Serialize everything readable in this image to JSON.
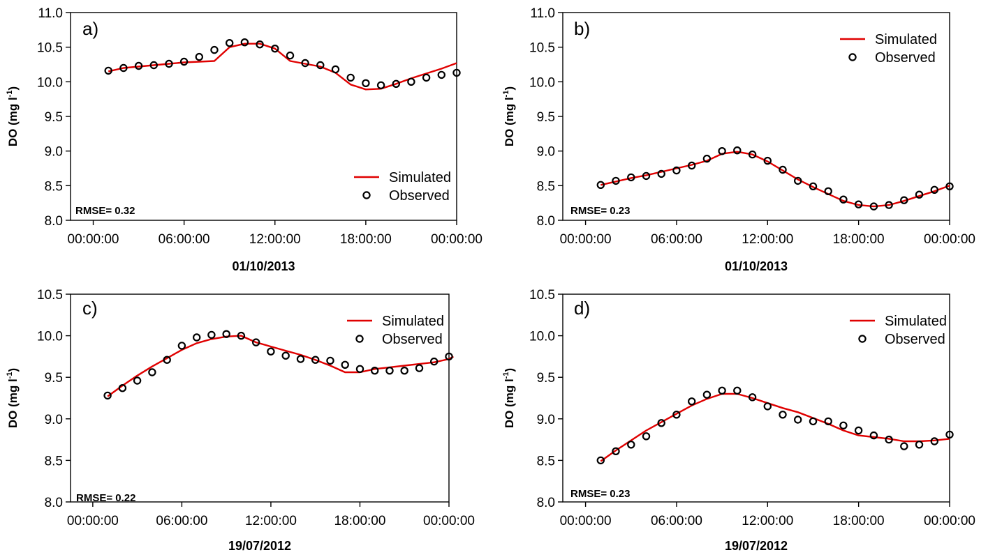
{
  "chart_data": [
    {
      "type": "line",
      "panel_label": "a)",
      "xlabel": "01/10/2013",
      "ylabel": "DO (mg l-1)",
      "ylabel_main": "DO (mg l",
      "ylabel_sup": "-1",
      "ylabel_close": ")",
      "ylim": [
        8.0,
        11.0
      ],
      "yticks": [
        "8.0",
        "8.5",
        "9.0",
        "9.5",
        "10.0",
        "10.5",
        "11.0"
      ],
      "xlim_hours": [
        -1.5,
        24
      ],
      "xticks": [
        "00:00:00",
        "06:00:00",
        "12:00:00",
        "18:00:00",
        "00:00:00"
      ],
      "legend_position": "bottom-right",
      "annotation": "RMSE= 0.32",
      "series": [
        {
          "name": "Simulated",
          "color": "#e00000",
          "x": [
            1,
            2,
            3,
            4,
            5,
            6,
            7,
            8,
            9,
            10,
            11,
            12,
            13,
            14,
            15,
            16,
            17,
            18,
            19,
            20,
            21,
            22,
            23,
            24
          ],
          "values": [
            10.15,
            10.2,
            10.22,
            10.24,
            10.26,
            10.28,
            10.29,
            10.3,
            10.5,
            10.55,
            10.55,
            10.48,
            10.3,
            10.26,
            10.22,
            10.13,
            9.96,
            9.89,
            9.9,
            9.97,
            10.05,
            10.12,
            10.19,
            10.27
          ]
        },
        {
          "name": "Observed",
          "x": [
            1,
            2,
            3,
            4,
            5,
            6,
            7,
            8,
            9,
            10,
            11,
            12,
            13,
            14,
            15,
            16,
            17,
            18,
            19,
            20,
            21,
            22,
            23,
            24
          ],
          "values": [
            10.16,
            10.2,
            10.23,
            10.24,
            10.26,
            10.29,
            10.36,
            10.46,
            10.56,
            10.57,
            10.54,
            10.48,
            10.38,
            10.27,
            10.24,
            10.18,
            10.06,
            9.98,
            9.95,
            9.97,
            10.0,
            10.06,
            10.1,
            10.13
          ]
        }
      ]
    },
    {
      "type": "line",
      "panel_label": "b)",
      "xlabel": "01/10/2013",
      "ylabel": "DO (mg l-1)",
      "ylabel_main": "DO (mg l",
      "ylabel_sup": "-1",
      "ylabel_close": ")",
      "ylim": [
        8.0,
        11.0
      ],
      "yticks": [
        "8.0",
        "8.5",
        "9.0",
        "9.5",
        "10.0",
        "10.5",
        "11.0"
      ],
      "xlim_hours": [
        -1.5,
        24
      ],
      "xticks": [
        "00:00:00",
        "06:00:00",
        "12:00:00",
        "18:00:00",
        "00:00:00"
      ],
      "legend_position": "top-right",
      "annotation": "RMSE= 0.23",
      "series": [
        {
          "name": "Simulated",
          "color": "#e00000",
          "x": [
            1,
            2,
            3,
            4,
            5,
            6,
            7,
            8,
            9,
            10,
            11,
            12,
            13,
            14,
            15,
            16,
            17,
            18,
            19,
            20,
            21,
            22,
            23,
            24
          ],
          "values": [
            8.51,
            8.56,
            8.61,
            8.65,
            8.7,
            8.75,
            8.8,
            8.86,
            8.96,
            8.99,
            8.95,
            8.85,
            8.72,
            8.59,
            8.48,
            8.38,
            8.28,
            8.22,
            8.2,
            8.22,
            8.28,
            8.35,
            8.42,
            8.5
          ]
        },
        {
          "name": "Observed",
          "x": [
            1,
            2,
            3,
            4,
            5,
            6,
            7,
            8,
            9,
            10,
            11,
            12,
            13,
            14,
            15,
            16,
            17,
            18,
            19,
            20,
            21,
            22,
            23,
            24
          ],
          "values": [
            8.51,
            8.57,
            8.62,
            8.64,
            8.67,
            8.72,
            8.79,
            8.89,
            9.0,
            9.01,
            8.95,
            8.86,
            8.73,
            8.57,
            8.49,
            8.42,
            8.3,
            8.23,
            8.2,
            8.22,
            8.29,
            8.37,
            8.44,
            8.49
          ]
        }
      ]
    },
    {
      "type": "line",
      "panel_label": "c)",
      "xlabel": "19/07/2012",
      "ylabel": "DO (mg l-1)",
      "ylabel_main": "DO (mg l",
      "ylabel_sup": "-1",
      "ylabel_close": ")",
      "ylim": [
        8.0,
        10.5
      ],
      "yticks": [
        "8.0",
        "8.5",
        "9.0",
        "9.5",
        "10.0",
        "10.5"
      ],
      "xlim_hours": [
        -1.5,
        24
      ],
      "xticks": [
        "00:00:00",
        "06:00:00",
        "12:00:00",
        "18:00:00",
        "00:00:00"
      ],
      "legend_position": "top-right",
      "annotation": "RMSE= 0.22",
      "series": [
        {
          "name": "Simulated",
          "color": "#e00000",
          "x": [
            1,
            2,
            3,
            4,
            5,
            6,
            7,
            8,
            9,
            10,
            11,
            12,
            13,
            14,
            15,
            16,
            17,
            18,
            19,
            20,
            21,
            22,
            23,
            24,
            24.3
          ],
          "values": [
            9.27,
            9.4,
            9.52,
            9.63,
            9.73,
            9.83,
            9.91,
            9.96,
            9.99,
            10.0,
            9.92,
            9.87,
            9.82,
            9.77,
            9.71,
            9.64,
            9.56,
            9.56,
            9.6,
            9.62,
            9.64,
            9.66,
            9.68,
            9.72,
            9.75
          ]
        },
        {
          "name": "Observed",
          "x": [
            1,
            2,
            3,
            4,
            5,
            6,
            7,
            8,
            9,
            10,
            11,
            12,
            13,
            14,
            15,
            16,
            17,
            18,
            19,
            20,
            21,
            22,
            23,
            24
          ],
          "values": [
            9.28,
            9.37,
            9.46,
            9.56,
            9.71,
            9.88,
            9.98,
            10.01,
            10.02,
            10.0,
            9.92,
            9.81,
            9.76,
            9.72,
            9.71,
            9.7,
            9.65,
            9.6,
            9.58,
            9.58,
            9.58,
            9.61,
            9.69,
            9.75
          ]
        }
      ]
    },
    {
      "type": "line",
      "panel_label": "d)",
      "xlabel": "19/07/2012",
      "ylabel": "DO (mg l-1)",
      "ylabel_main": "DO (mg l",
      "ylabel_sup": "-1",
      "ylabel_close": ")",
      "ylim": [
        8.0,
        10.5
      ],
      "yticks": [
        "8.0",
        "8.5",
        "9.0",
        "9.5",
        "10.0",
        "10.5"
      ],
      "xlim_hours": [
        -1.5,
        24
      ],
      "xticks": [
        "00:00:00",
        "06:00:00",
        "12:00:00",
        "18:00:00",
        "00:00:00"
      ],
      "legend_position": "top-right",
      "annotation": "RMSE= 0.23",
      "series": [
        {
          "name": "Simulated",
          "color": "#e00000",
          "x": [
            1,
            2,
            3,
            4,
            5,
            6,
            7,
            8,
            9,
            10,
            11,
            12,
            13,
            14,
            15,
            16,
            17,
            18,
            19,
            20,
            21,
            22,
            23,
            24
          ],
          "values": [
            8.49,
            8.62,
            8.74,
            8.86,
            8.96,
            9.06,
            9.16,
            9.24,
            9.3,
            9.3,
            9.25,
            9.19,
            9.13,
            9.08,
            9.01,
            8.94,
            8.86,
            8.8,
            8.78,
            8.76,
            8.73,
            8.73,
            8.74,
            8.76
          ]
        },
        {
          "name": "Observed",
          "x": [
            1,
            2,
            3,
            4,
            5,
            6,
            7,
            8,
            9,
            10,
            11,
            12,
            13,
            14,
            15,
            16,
            17,
            18,
            19,
            20,
            21,
            22,
            23,
            24
          ],
          "values": [
            8.5,
            8.61,
            8.69,
            8.79,
            8.95,
            9.05,
            9.21,
            9.29,
            9.34,
            9.34,
            9.26,
            9.15,
            9.05,
            8.99,
            8.97,
            8.97,
            8.92,
            8.86,
            8.8,
            8.75,
            8.67,
            8.69,
            8.73,
            8.81
          ]
        }
      ]
    }
  ]
}
